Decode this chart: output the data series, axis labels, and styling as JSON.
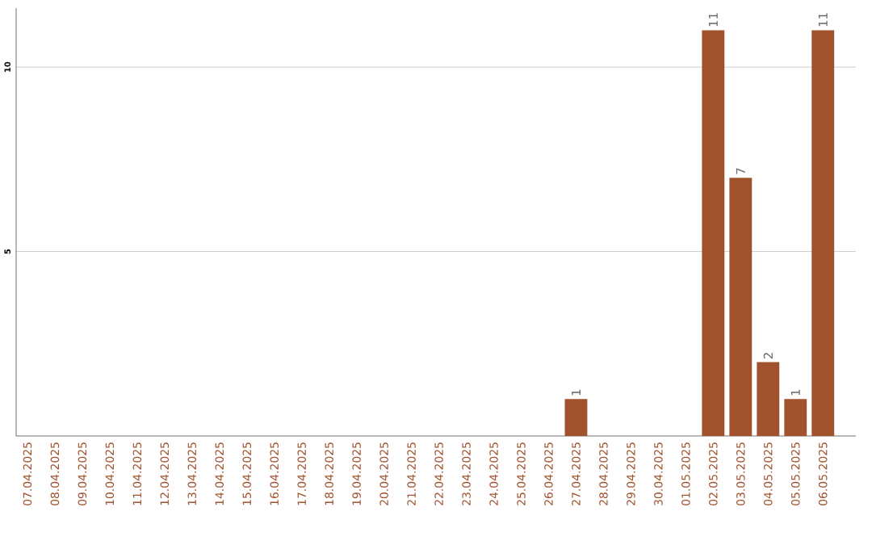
{
  "chart_data": {
    "type": "bar",
    "categories": [
      "07.04.2025",
      "08.04.2025",
      "09.04.2025",
      "10.04.2025",
      "11.04.2025",
      "12.04.2025",
      "13.04.2025",
      "14.04.2025",
      "15.04.2025",
      "16.04.2025",
      "17.04.2025",
      "18.04.2025",
      "19.04.2025",
      "20.04.2025",
      "21.04.2025",
      "22.04.2025",
      "23.04.2025",
      "24.04.2025",
      "25.04.2025",
      "26.04.2025",
      "27.04.2025",
      "28.04.2025",
      "29.04.2025",
      "30.04.2025",
      "01.05.2025",
      "02.05.2025",
      "03.05.2025",
      "04.05.2025",
      "05.05.2025",
      "06.05.2025"
    ],
    "values": [
      0,
      0,
      0,
      0,
      0,
      0,
      0,
      0,
      0,
      0,
      0,
      0,
      0,
      0,
      0,
      0,
      0,
      0,
      0,
      0,
      1,
      0,
      0,
      0,
      0,
      11,
      7,
      2,
      1,
      11
    ],
    "value_labels": [
      null,
      null,
      null,
      null,
      null,
      null,
      null,
      null,
      null,
      null,
      null,
      null,
      null,
      null,
      null,
      null,
      null,
      null,
      null,
      null,
      "1",
      null,
      null,
      null,
      null,
      "11",
      "7",
      "2",
      "1",
      "11"
    ],
    "color": "#a0522d",
    "ylim": [
      0,
      11.6
    ],
    "yticks": [
      5,
      10
    ],
    "grid": "y"
  }
}
